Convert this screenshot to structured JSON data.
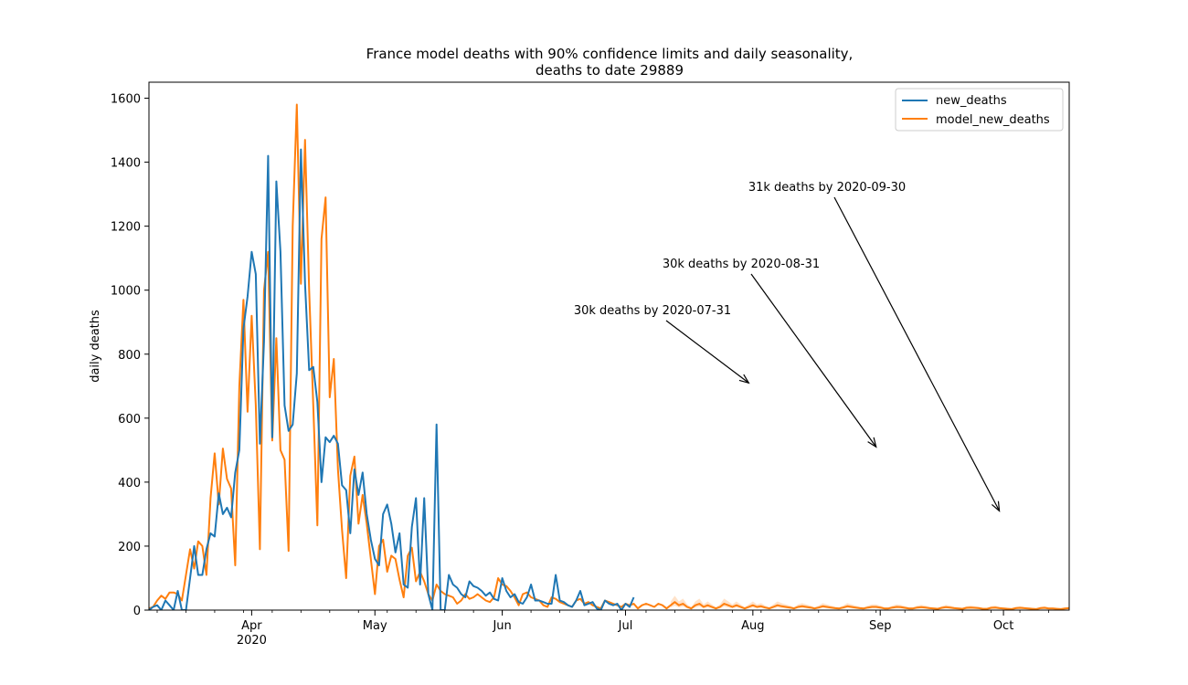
{
  "chart_data": {
    "type": "line",
    "title": "France model deaths with 90% confidence limits and daily seasonality,\ndeaths to date 29889",
    "title_lines": [
      "France model deaths with 90% confidence limits and daily seasonality,",
      "deaths to date 29889"
    ],
    "xlabel": "",
    "ylabel": "daily deaths",
    "x_axis": {
      "type": "date",
      "start": "2020-03-07",
      "end": "2020-10-17",
      "ticks": [
        {
          "date": "2020-04-01",
          "label": "Apr",
          "sublabel": "2020"
        },
        {
          "date": "2020-05-01",
          "label": "May"
        },
        {
          "date": "2020-06-01",
          "label": "Jun"
        },
        {
          "date": "2020-07-01",
          "label": "Jul"
        },
        {
          "date": "2020-08-01",
          "label": "Aug"
        },
        {
          "date": "2020-09-01",
          "label": "Sep"
        },
        {
          "date": "2020-10-01",
          "label": "Oct"
        }
      ]
    },
    "ylim": [
      0,
      1650
    ],
    "yticks": [
      0,
      200,
      400,
      600,
      800,
      1000,
      1200,
      1400,
      1600
    ],
    "grid": false,
    "legend": {
      "position": "top-right",
      "entries": [
        "new_deaths",
        "model_new_deaths"
      ]
    },
    "series": [
      {
        "name": "new_deaths",
        "color": "#1f77b4",
        "start": "2020-03-07",
        "values": [
          0,
          10,
          15,
          0,
          30,
          15,
          0,
          60,
          0,
          0,
          100,
          200,
          110,
          110,
          190,
          240,
          230,
          365,
          300,
          320,
          290,
          430,
          500,
          880,
          980,
          1120,
          1050,
          520,
          840,
          1420,
          540,
          1340,
          1120,
          640,
          560,
          580,
          740,
          1440,
          1020,
          750,
          760,
          650,
          400,
          540,
          525,
          545,
          520,
          390,
          375,
          240,
          440,
          360,
          430,
          300,
          220,
          160,
          140,
          300,
          330,
          270,
          180,
          240,
          80,
          70,
          260,
          350,
          80,
          350,
          50,
          0,
          580,
          0,
          0,
          110,
          80,
          70,
          50,
          40,
          90,
          75,
          70,
          60,
          45,
          55,
          35,
          30,
          100,
          60,
          40,
          50,
          25,
          20,
          40,
          80,
          30,
          30,
          25,
          20,
          20,
          110,
          30,
          25,
          15,
          10,
          30,
          60,
          15,
          20,
          25,
          5,
          0,
          30,
          20,
          15,
          20,
          0,
          20,
          10,
          40
        ]
      },
      {
        "name": "model_new_deaths",
        "color": "#ff7f0e",
        "start": "2020-03-07",
        "values": [
          5,
          10,
          30,
          45,
          35,
          55,
          55,
          50,
          30,
          110,
          190,
          130,
          215,
          200,
          110,
          350,
          490,
          330,
          505,
          410,
          380,
          140,
          700,
          970,
          620,
          920,
          640,
          190,
          1000,
          1120,
          530,
          850,
          500,
          470,
          185,
          1200,
          1580,
          1020,
          1470,
          1000,
          640,
          265,
          1160,
          1290,
          665,
          785,
          440,
          250,
          100,
          420,
          480,
          270,
          360,
          270,
          160,
          50,
          200,
          220,
          120,
          170,
          160,
          95,
          40,
          170,
          195,
          90,
          120,
          90,
          50,
          30,
          80,
          60,
          50,
          45,
          40,
          20,
          30,
          50,
          35,
          40,
          50,
          40,
          30,
          25,
          40,
          100,
          80,
          75,
          60,
          40,
          15,
          50,
          55,
          40,
          35,
          30,
          15,
          10,
          40,
          35,
          25,
          20,
          15,
          10,
          30,
          35,
          20,
          25,
          15,
          10,
          5,
          30,
          25,
          20,
          15,
          10,
          20,
          15,
          20,
          5,
          15,
          20,
          15,
          10,
          20,
          15,
          5,
          15,
          25,
          15,
          20,
          10,
          5,
          15,
          20,
          10,
          15,
          10,
          5,
          10,
          20,
          15,
          10,
          15,
          10,
          5,
          10,
          15,
          10,
          12,
          8,
          5,
          10,
          15,
          12,
          10,
          8,
          5,
          10,
          12,
          10,
          8,
          5,
          8,
          12,
          10,
          8,
          6,
          5,
          8,
          12,
          10,
          8,
          6,
          5,
          8,
          10,
          10,
          8,
          5,
          5,
          8,
          10,
          9,
          7,
          5,
          5,
          8,
          9,
          8,
          6,
          5,
          4,
          7,
          9,
          8,
          6,
          5,
          4,
          7,
          8,
          7,
          6,
          4,
          4,
          7,
          8,
          6,
          5,
          4,
          3,
          6,
          7,
          6,
          5,
          4,
          3,
          6,
          7,
          5,
          5,
          4,
          3,
          5,
          6,
          5,
          4,
          3
        ]
      }
    ],
    "confidence_band": {
      "color": "#ff7f0e",
      "start": "2020-07-12",
      "upper_ratio": 1.8,
      "lower_ratio": 0.55
    },
    "annotations": [
      {
        "text": "30k deaths by 2020-07-31",
        "arrow_to": {
          "date": "2020-07-31",
          "value": 710
        }
      },
      {
        "text": "30k deaths by 2020-08-31",
        "arrow_to": {
          "date": "2020-08-31",
          "value": 510
        }
      },
      {
        "text": "31k deaths by 2020-09-30",
        "arrow_to": {
          "date": "2020-09-30",
          "value": 310
        }
      }
    ]
  }
}
